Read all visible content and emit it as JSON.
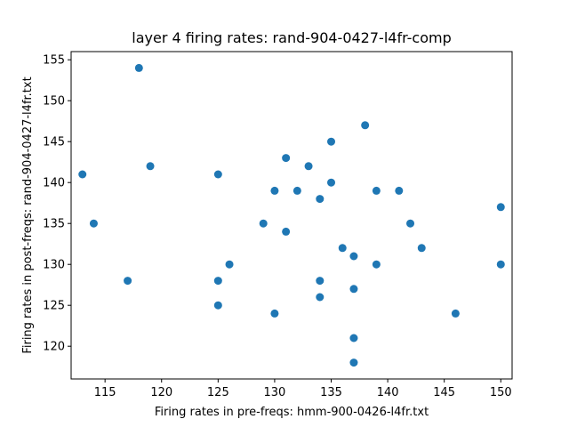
{
  "chart_data": {
    "type": "scatter",
    "title": "layer 4 firing rates: rand-904-0427-l4fr-comp",
    "xlabel": "Firing rates in pre-freqs: hmm-900-0426-l4fr.txt",
    "ylabel": "Firing rates in post-freqs: rand-904-0427-l4fr.txt",
    "xlim": [
      112,
      151
    ],
    "ylim": [
      116,
      156
    ],
    "xticks": [
      115,
      120,
      125,
      130,
      135,
      140,
      145,
      150
    ],
    "yticks": [
      120,
      125,
      130,
      135,
      140,
      145,
      150,
      155
    ],
    "grid": false,
    "marker_color": "#1f77b4",
    "x": [
      113,
      114,
      117,
      118,
      119,
      125,
      125,
      125,
      126,
      129,
      130,
      130,
      131,
      131,
      132,
      133,
      134,
      134,
      134,
      135,
      135,
      136,
      137,
      137,
      137,
      137,
      138,
      139,
      139,
      141,
      142,
      143,
      146,
      150,
      150
    ],
    "y": [
      141,
      135,
      128,
      154,
      142,
      141,
      128,
      125,
      130,
      135,
      139,
      124,
      143,
      134,
      139,
      142,
      138,
      128,
      126,
      145,
      140,
      132,
      131,
      127,
      121,
      118,
      147,
      139,
      130,
      139,
      135,
      132,
      124,
      137,
      130
    ]
  }
}
